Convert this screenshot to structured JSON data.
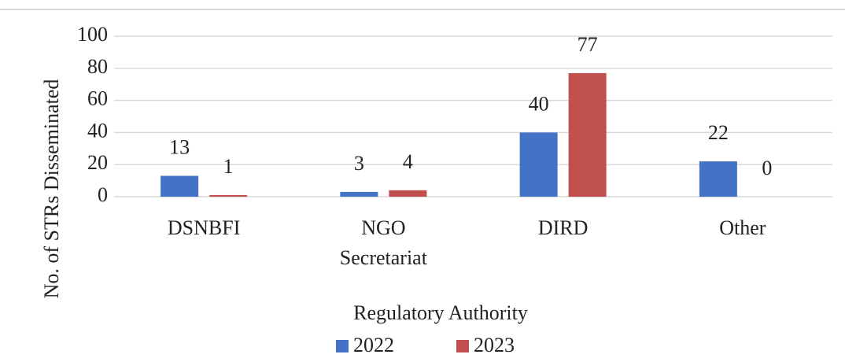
{
  "chart_data": {
    "type": "bar",
    "x_label": "Regulatory Authority",
    "y_label": "No. of STRs Disseminated",
    "categories": [
      "DSNBFI",
      "NGO Secretariat",
      "DIRD",
      "Other"
    ],
    "series": [
      {
        "name": "2022",
        "color": "#4472c4",
        "values": [
          13,
          3,
          40,
          22
        ]
      },
      {
        "name": "2023",
        "color": "#c0504d",
        "values": [
          1,
          4,
          77,
          0
        ]
      }
    ],
    "ylim": [
      0,
      100
    ],
    "yticks": [
      0,
      20,
      40,
      60,
      80,
      100
    ],
    "grid": true,
    "legend": "bottom"
  }
}
